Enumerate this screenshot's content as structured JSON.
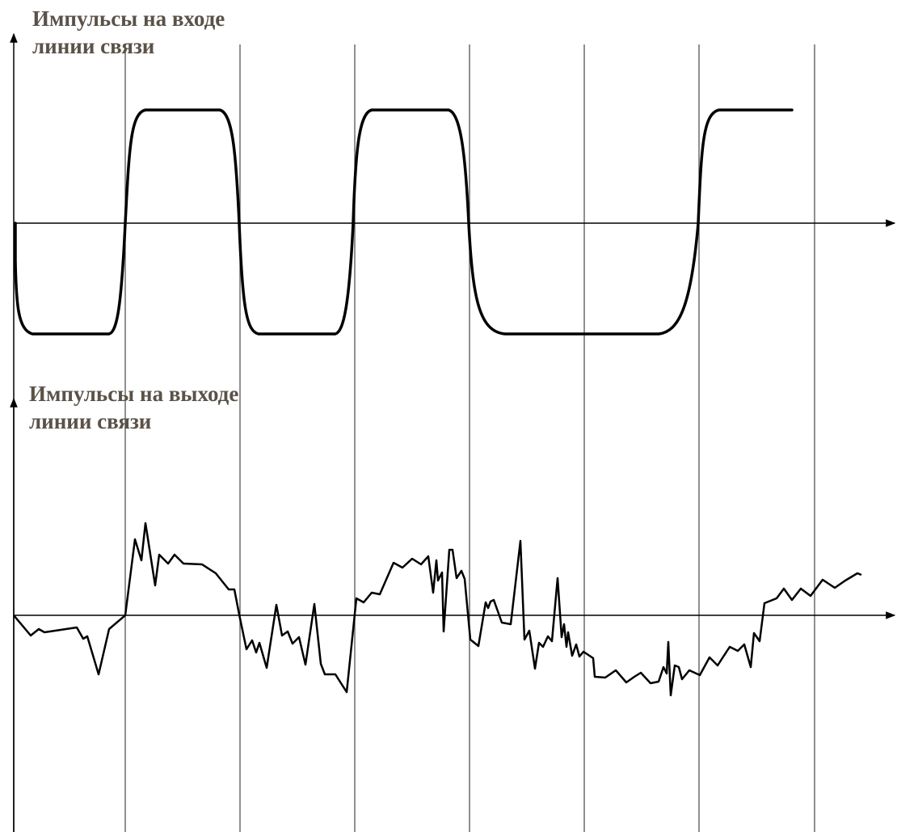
{
  "diagram": {
    "top_panel": {
      "title_line1": "Импульсы на входе",
      "title_line2": "линии связи"
    },
    "bottom_panel": {
      "title_line1": "Импульсы на выходе",
      "title_line2": "линии связи"
    },
    "time_slots": 7,
    "input_levels": [
      -1,
      1,
      -1,
      1,
      -1,
      -1,
      1,
      1
    ],
    "colors": {
      "signal": "#000000",
      "axes": "#000000",
      "gridlines": "#555555",
      "caption": "#5a5248"
    }
  }
}
